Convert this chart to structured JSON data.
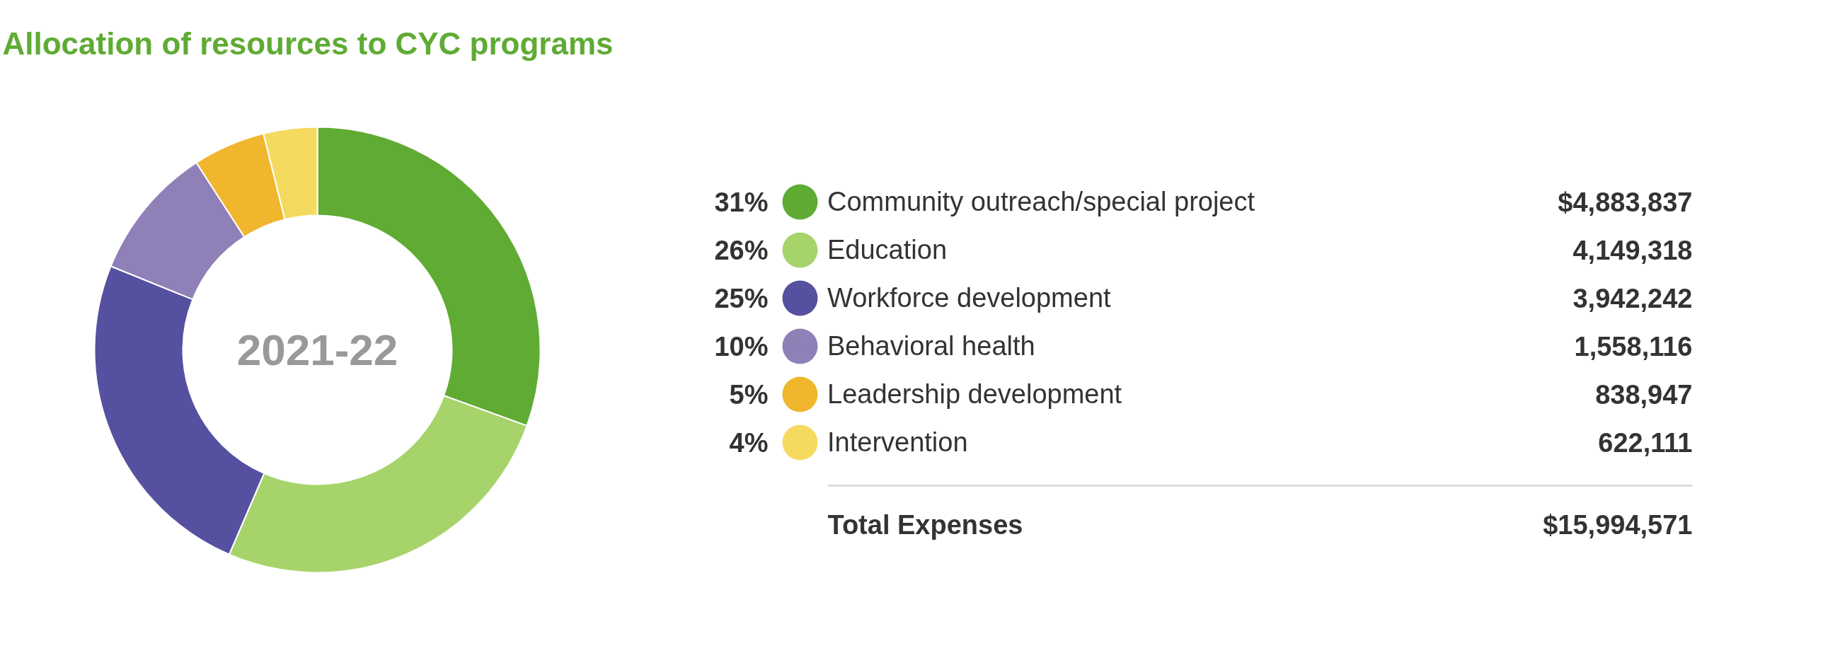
{
  "chart_data": {
    "type": "donut",
    "title": "Allocation of resources to CYC programs",
    "categories": [
      "Community outreach/special project",
      "Education",
      "Workforce development",
      "Behavioral health",
      "Leadership development",
      "Intervention"
    ],
    "values": [
      4883837,
      4149318,
      3942242,
      1558116,
      838947,
      622111
    ],
    "colors": [
      "#5fab34",
      "#a7d46a",
      "#5650a0",
      "#8f80b8",
      "#f0b62e",
      "#f5da60"
    ],
    "value_labels": [
      "$4,883,837",
      "4,149,318",
      "3,942,242",
      "1,558,116",
      "838,947",
      "622,111"
    ],
    "legend": "right",
    "annotations": [
      "31%",
      "26%",
      "25%",
      "10%",
      "5%",
      "4%",
      "2021-22",
      "Total Expenses",
      "$15,994,571"
    ]
  }
}
